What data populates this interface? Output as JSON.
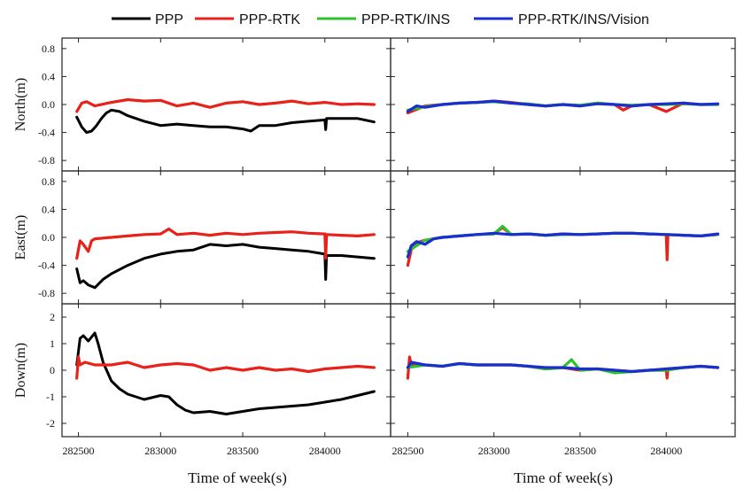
{
  "chart_data": {
    "type": "line",
    "legend": {
      "placement": "top",
      "entries": [
        {
          "name": "PPP",
          "color": "#000000"
        },
        {
          "name": "PPP-RTK",
          "color": "#e8211a"
        },
        {
          "name": "PPP-RTK/INS",
          "color": "#2ec32a"
        },
        {
          "name": "PPP-RTK/INS/Vision",
          "color": "#1a2fd0"
        }
      ]
    },
    "xlabel": "Time of week(s)",
    "xlim": [
      282400,
      284400
    ],
    "xticks": [
      282500,
      283000,
      283500,
      284000
    ],
    "xtick_labels": [
      "282500",
      "283000",
      "283500",
      "284000"
    ],
    "rows": [
      {
        "ylabel": "North(m)",
        "ylim": [
          -0.95,
          0.95
        ],
        "yticks": [
          0.8,
          0.4,
          0.0,
          -0.4,
          -0.8
        ],
        "ytick_labels": [
          "0.8",
          "0.4",
          "0.0",
          "-0.4",
          "-0.8"
        ]
      },
      {
        "ylabel": "East(m)",
        "ylim": [
          -0.95,
          0.95
        ],
        "yticks": [
          0.8,
          0.4,
          0.0,
          -0.4,
          -0.8
        ],
        "ytick_labels": [
          "0.8",
          "0.4",
          "0.0",
          "-0.4",
          "-0.8"
        ]
      },
      {
        "ylabel": "Down(m)",
        "ylim": [
          -2.5,
          2.5
        ],
        "yticks": [
          2,
          1,
          0,
          -1,
          -2
        ],
        "ytick_labels": [
          "2",
          "1",
          "0",
          "-1",
          "-2"
        ]
      }
    ],
    "panels": [
      {
        "row": 0,
        "col": 0,
        "series": [
          {
            "name": "PPP",
            "color": "#000000",
            "x": [
              282490,
              282520,
              282550,
              282580,
              282610,
              282640,
              282670,
              282700,
              282750,
              282800,
              282900,
              283000,
              283100,
              283200,
              283300,
              283400,
              283500,
              283550,
              283600,
              283700,
              283800,
              283900,
              284000,
              284005,
              284010,
              284100,
              284200,
              284300
            ],
            "y": [
              -0.18,
              -0.32,
              -0.4,
              -0.38,
              -0.3,
              -0.2,
              -0.12,
              -0.08,
              -0.1,
              -0.16,
              -0.24,
              -0.3,
              -0.28,
              -0.3,
              -0.32,
              -0.32,
              -0.35,
              -0.38,
              -0.3,
              -0.3,
              -0.26,
              -0.24,
              -0.22,
              -0.36,
              -0.2,
              -0.2,
              -0.2,
              -0.25
            ]
          },
          {
            "name": "PPP-RTK",
            "color": "#e8211a",
            "x": [
              282490,
              282520,
              282550,
              282600,
              282700,
              282800,
              282900,
              283000,
              283100,
              283200,
              283300,
              283400,
              283500,
              283600,
              283700,
              283800,
              283900,
              284000,
              284100,
              284200,
              284300
            ],
            "y": [
              -0.1,
              0.02,
              0.04,
              -0.02,
              0.03,
              0.07,
              0.05,
              0.06,
              -0.02,
              0.02,
              -0.04,
              0.02,
              0.04,
              0.0,
              0.02,
              0.05,
              0.01,
              0.03,
              0.0,
              0.01,
              0.0
            ]
          }
        ]
      },
      {
        "row": 0,
        "col": 1,
        "series": [
          {
            "name": "PPP-RTK",
            "color": "#e8211a",
            "x": [
              282500,
              282600,
              282700,
              282800,
              282900,
              283000,
              283100,
              283200,
              283300,
              283400,
              283500,
              283600,
              283700,
              283750,
              283800,
              283900,
              284000,
              284100,
              284200,
              284300
            ],
            "y": [
              -0.12,
              -0.02,
              0.0,
              0.02,
              0.03,
              0.05,
              0.03,
              0.0,
              -0.02,
              0.0,
              -0.02,
              0.02,
              0.0,
              -0.08,
              -0.02,
              0.0,
              -0.1,
              0.02,
              0.0,
              0.0
            ]
          },
          {
            "name": "PPP-RTK/INS",
            "color": "#2ec32a",
            "x": [
              282500,
              282600,
              282700,
              282800,
              282900,
              283000,
              283100,
              283200,
              283300,
              283400,
              283500,
              283600,
              283700,
              283800,
              283900,
              284000,
              284100,
              284200,
              284300
            ],
            "y": [
              -0.08,
              -0.03,
              0.0,
              0.02,
              0.03,
              0.04,
              0.02,
              0.01,
              -0.02,
              0.0,
              -0.01,
              0.02,
              0.0,
              -0.01,
              0.0,
              0.0,
              0.01,
              0.0,
              0.0
            ]
          },
          {
            "name": "PPP-RTK/INS/Vision",
            "color": "#1a2fd0",
            "x": [
              282500,
              282550,
              282600,
              282700,
              282800,
              282900,
              283000,
              283100,
              283200,
              283300,
              283400,
              283500,
              283600,
              283700,
              283800,
              283900,
              284000,
              284100,
              284200,
              284300
            ],
            "y": [
              -0.1,
              -0.02,
              -0.04,
              0.0,
              0.02,
              0.03,
              0.05,
              0.02,
              0.0,
              -0.02,
              0.0,
              -0.02,
              0.01,
              0.0,
              -0.02,
              0.0,
              0.01,
              0.02,
              0.0,
              0.01
            ]
          }
        ]
      },
      {
        "row": 1,
        "col": 0,
        "series": [
          {
            "name": "PPP",
            "color": "#000000",
            "x": [
              282490,
              282510,
              282530,
              282560,
              282600,
              282650,
              282700,
              282800,
              282900,
              283000,
              283100,
              283200,
              283300,
              283400,
              283500,
              283600,
              283700,
              283800,
              283900,
              284000,
              284005,
              284010,
              284100,
              284200,
              284300
            ],
            "y": [
              -0.45,
              -0.65,
              -0.62,
              -0.68,
              -0.72,
              -0.6,
              -0.52,
              -0.4,
              -0.3,
              -0.24,
              -0.2,
              -0.18,
              -0.1,
              -0.12,
              -0.1,
              -0.14,
              -0.16,
              -0.18,
              -0.2,
              -0.24,
              -0.6,
              -0.26,
              -0.26,
              -0.28,
              -0.3
            ]
          },
          {
            "name": "PPP-RTK",
            "color": "#e8211a",
            "x": [
              282490,
              282510,
              282530,
              282560,
              282580,
              282600,
              282700,
              282800,
              282900,
              283000,
              283050,
              283100,
              283200,
              283300,
              283400,
              283500,
              283600,
              283700,
              283800,
              283900,
              284000,
              284005,
              284010,
              284100,
              284200,
              284300
            ],
            "y": [
              -0.3,
              -0.05,
              -0.1,
              -0.2,
              -0.05,
              -0.02,
              0.0,
              0.02,
              0.04,
              0.05,
              0.12,
              0.04,
              0.06,
              0.03,
              0.06,
              0.04,
              0.06,
              0.07,
              0.08,
              0.06,
              0.05,
              -0.3,
              0.04,
              0.03,
              0.02,
              0.04
            ]
          }
        ]
      },
      {
        "row": 1,
        "col": 1,
        "series": [
          {
            "name": "PPP-RTK",
            "color": "#e8211a",
            "x": [
              282500,
              282520,
              282550,
              282600,
              282700,
              282800,
              282900,
              283000,
              283050,
              283100,
              283200,
              283300,
              283400,
              283500,
              283600,
              283700,
              283800,
              283900,
              284000,
              284005,
              284010,
              284100,
              284200,
              284300
            ],
            "y": [
              -0.4,
              -0.18,
              -0.08,
              -0.04,
              0.0,
              0.02,
              0.04,
              0.05,
              0.14,
              0.04,
              0.05,
              0.03,
              0.05,
              0.04,
              0.05,
              0.06,
              0.06,
              0.05,
              0.04,
              -0.32,
              0.04,
              0.03,
              0.02,
              0.04
            ]
          },
          {
            "name": "PPP-RTK/INS",
            "color": "#2ec32a",
            "x": [
              282500,
              282600,
              282700,
              282800,
              282900,
              283000,
              283050,
              283100,
              283200,
              283300,
              283400,
              283500,
              283600,
              283700,
              283800,
              283900,
              284000,
              284100,
              284200,
              284300
            ],
            "y": [
              -0.2,
              -0.04,
              0.0,
              0.02,
              0.04,
              0.05,
              0.16,
              0.04,
              0.05,
              0.03,
              0.04,
              0.04,
              0.05,
              0.06,
              0.06,
              0.05,
              0.04,
              0.03,
              0.02,
              0.04
            ]
          },
          {
            "name": "PPP-RTK/INS/Vision",
            "color": "#1a2fd0",
            "x": [
              282500,
              282520,
              282550,
              282600,
              282650,
              282700,
              282800,
              282900,
              283000,
              283100,
              283200,
              283300,
              283400,
              283500,
              283600,
              283700,
              283800,
              283900,
              284000,
              284100,
              284200,
              284300
            ],
            "y": [
              -0.28,
              -0.12,
              -0.06,
              -0.1,
              -0.02,
              0.0,
              0.02,
              0.04,
              0.06,
              0.04,
              0.05,
              0.03,
              0.05,
              0.04,
              0.05,
              0.06,
              0.06,
              0.05,
              0.04,
              0.03,
              0.02,
              0.05
            ]
          }
        ]
      },
      {
        "row": 2,
        "col": 0,
        "series": [
          {
            "name": "PPP",
            "color": "#000000",
            "x": [
              282490,
              282510,
              282530,
              282560,
              282600,
              282620,
              282650,
              282700,
              282750,
              282800,
              282900,
              283000,
              283050,
              283100,
              283150,
              283200,
              283300,
              283400,
              283500,
              283600,
              283700,
              283800,
              283900,
              284000,
              284100,
              284200,
              284300
            ],
            "y": [
              0.2,
              1.2,
              1.3,
              1.1,
              1.4,
              1.0,
              0.3,
              -0.4,
              -0.7,
              -0.9,
              -1.1,
              -0.95,
              -1.0,
              -1.3,
              -1.5,
              -1.6,
              -1.55,
              -1.65,
              -1.55,
              -1.45,
              -1.4,
              -1.35,
              -1.3,
              -1.2,
              -1.1,
              -0.95,
              -0.8
            ]
          },
          {
            "name": "PPP-RTK",
            "color": "#e8211a",
            "x": [
              282490,
              282500,
              282510,
              282540,
              282600,
              282700,
              282800,
              282900,
              283000,
              283100,
              283200,
              283300,
              283400,
              283500,
              283600,
              283700,
              283800,
              283900,
              284000,
              284100,
              284200,
              284300
            ],
            "y": [
              -0.3,
              0.5,
              0.2,
              0.3,
              0.2,
              0.2,
              0.3,
              0.1,
              0.2,
              0.25,
              0.2,
              0.0,
              0.1,
              0.0,
              0.1,
              0.0,
              0.05,
              -0.05,
              0.05,
              0.1,
              0.15,
              0.1
            ]
          }
        ]
      },
      {
        "row": 2,
        "col": 1,
        "series": [
          {
            "name": "PPP-RTK",
            "color": "#e8211a",
            "x": [
              282500,
              282510,
              282520,
              282600,
              282700,
              282800,
              282900,
              283000,
              283100,
              283200,
              283300,
              283400,
              283500,
              283600,
              283700,
              283800,
              283900,
              284000,
              284005,
              284010,
              284100,
              284200,
              284300
            ],
            "y": [
              -0.3,
              0.5,
              0.2,
              0.2,
              0.15,
              0.25,
              0.2,
              0.2,
              0.2,
              0.15,
              0.05,
              0.1,
              0.0,
              0.05,
              0.0,
              -0.05,
              0.0,
              0.0,
              -0.3,
              0.05,
              0.1,
              0.15,
              0.1
            ]
          },
          {
            "name": "PPP-RTK/INS",
            "color": "#2ec32a",
            "x": [
              282500,
              282600,
              282700,
              282800,
              282900,
              283000,
              283100,
              283200,
              283300,
              283400,
              283450,
              283500,
              283600,
              283700,
              283800,
              283900,
              284000,
              284100,
              284200,
              284300
            ],
            "y": [
              0.1,
              0.2,
              0.15,
              0.25,
              0.2,
              0.2,
              0.2,
              0.15,
              0.05,
              0.1,
              0.4,
              0.0,
              0.05,
              -0.1,
              -0.05,
              0.0,
              0.0,
              0.1,
              0.15,
              0.1
            ]
          },
          {
            "name": "PPP-RTK/INS/Vision",
            "color": "#1a2fd0",
            "x": [
              282500,
              282520,
              282600,
              282700,
              282800,
              282900,
              283000,
              283100,
              283200,
              283300,
              283400,
              283500,
              283600,
              283700,
              283800,
              283900,
              284000,
              284100,
              284200,
              284300
            ],
            "y": [
              0.1,
              0.3,
              0.2,
              0.15,
              0.25,
              0.2,
              0.2,
              0.2,
              0.15,
              0.1,
              0.1,
              0.05,
              0.05,
              0.0,
              -0.05,
              0.0,
              0.05,
              0.1,
              0.15,
              0.1
            ]
          }
        ]
      }
    ]
  }
}
